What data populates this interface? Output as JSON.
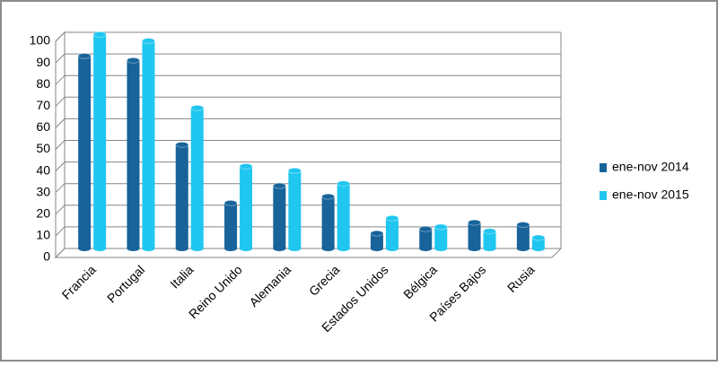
{
  "chart_data": {
    "type": "bar",
    "categories": [
      "Francia",
      "Portugal",
      "Italia",
      "Reino Unido",
      "Alemania",
      "Grecia",
      "Estados Unidos",
      "Bélgica",
      "Países Bajos",
      "Rusia"
    ],
    "series": [
      {
        "name": "ene-nov 2014",
        "color": "#17639a",
        "values": [
          89,
          87,
          48,
          21,
          29,
          24,
          7,
          9,
          12,
          11
        ]
      },
      {
        "name": "ene-nov 2015",
        "color": "#1fc6f0",
        "values": [
          99,
          96,
          65,
          38,
          36,
          30,
          14,
          10,
          8,
          5
        ]
      }
    ],
    "ylim": [
      0,
      100
    ],
    "yticks": [
      0,
      10,
      20,
      30,
      40,
      50,
      60,
      70,
      80,
      90,
      100
    ],
    "grid": true,
    "legend": "right"
  }
}
